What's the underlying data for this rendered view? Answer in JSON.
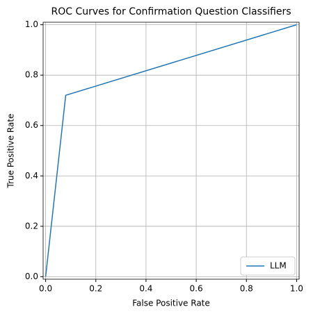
{
  "chart_data": {
    "type": "line",
    "title": "ROC Curves for Confirmation Question Classifiers",
    "x_label": "False Positive Rate",
    "y_label": "True Positive Rate",
    "x": [
      0,
      0.08,
      1
    ],
    "series": [
      {
        "name": "LLM",
        "color": "#1f77b4",
        "values": [
          0,
          0.72,
          1
        ]
      }
    ],
    "xlim": [
      -0.01,
      1.01
    ],
    "ylim": [
      -0.01,
      1.01
    ],
    "xticks": [
      {
        "value": 0,
        "label": "0.0"
      },
      {
        "value": 0.2,
        "label": "0.2"
      },
      {
        "value": 0.4,
        "label": "0.4"
      },
      {
        "value": 0.6,
        "label": "0.6"
      },
      {
        "value": 0.8,
        "label": "0.8"
      },
      {
        "value": 1,
        "label": "1.0"
      }
    ],
    "yticks": [
      {
        "value": 0,
        "label": "0.0"
      },
      {
        "value": 0.2,
        "label": "0.2"
      },
      {
        "value": 0.4,
        "label": "0.4"
      },
      {
        "value": 0.6,
        "label": "0.6"
      },
      {
        "value": 0.8,
        "label": "0.8"
      },
      {
        "value": 1,
        "label": "1.0"
      }
    ],
    "grid": true,
    "legend": "lower right"
  }
}
